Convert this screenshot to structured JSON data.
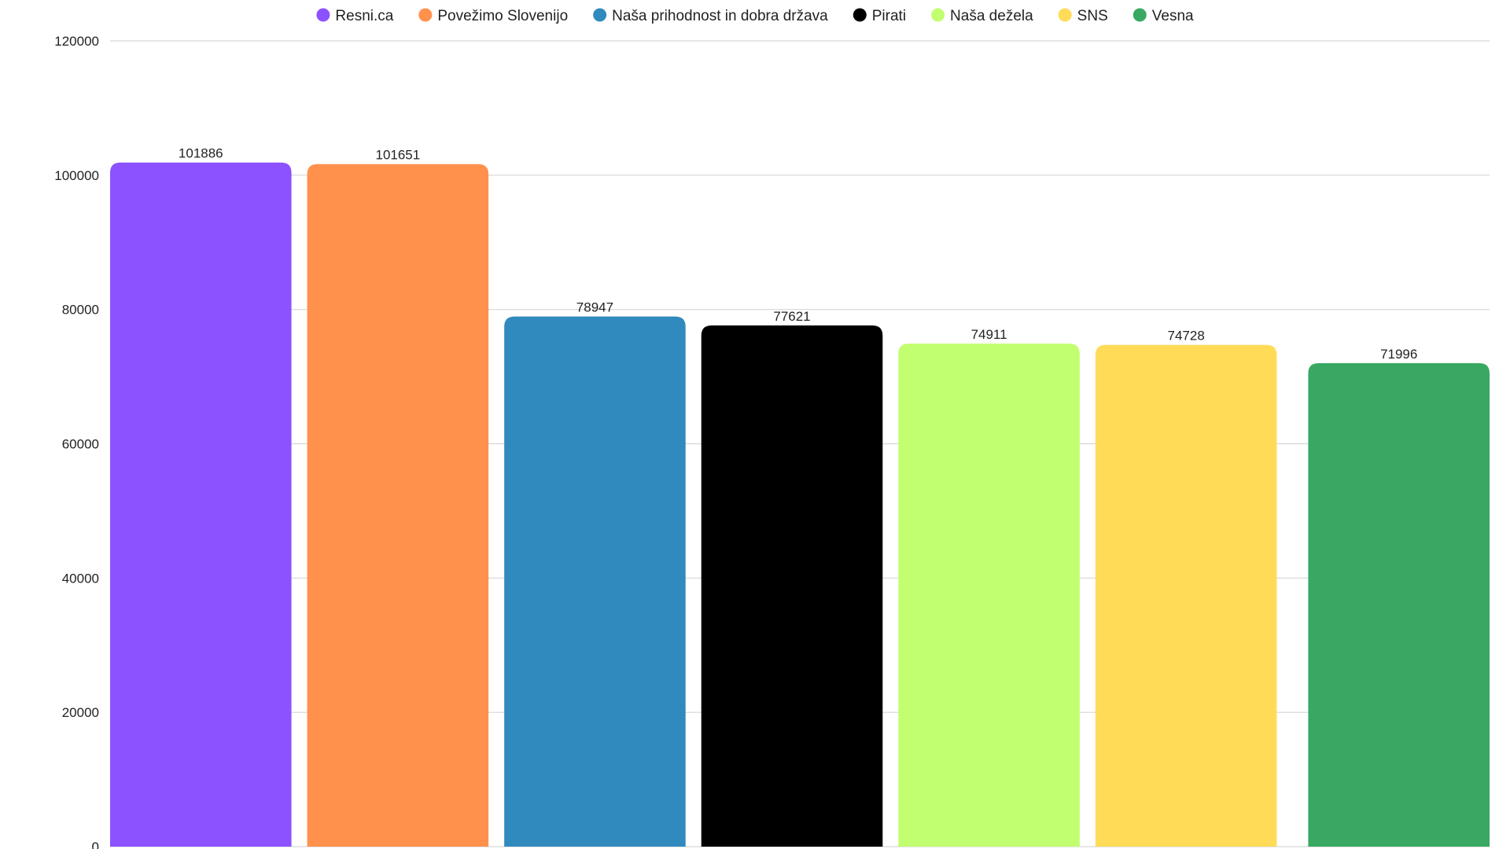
{
  "chart_data": {
    "type": "bar",
    "title": "",
    "xlabel": "",
    "ylabel": "",
    "ylim": [
      0,
      120000
    ],
    "yticks": [
      0,
      20000,
      40000,
      60000,
      80000,
      100000,
      120000
    ],
    "grid": true,
    "legend_position": "top-center",
    "show_data_labels": true,
    "categories": [
      "Resni.ca",
      "Povežimo Slovenijo",
      "Naša prihodnost in dobra država",
      "Pirati",
      "Naša dežela",
      "SNS",
      "Vesna"
    ],
    "values": [
      101886,
      101651,
      78947,
      77621,
      74911,
      74728,
      71996
    ],
    "colors": [
      "#8c52ff",
      "#ff914d",
      "#318abd",
      "#000000",
      "#c2ff70",
      "#ffdb58",
      "#38a862"
    ]
  }
}
